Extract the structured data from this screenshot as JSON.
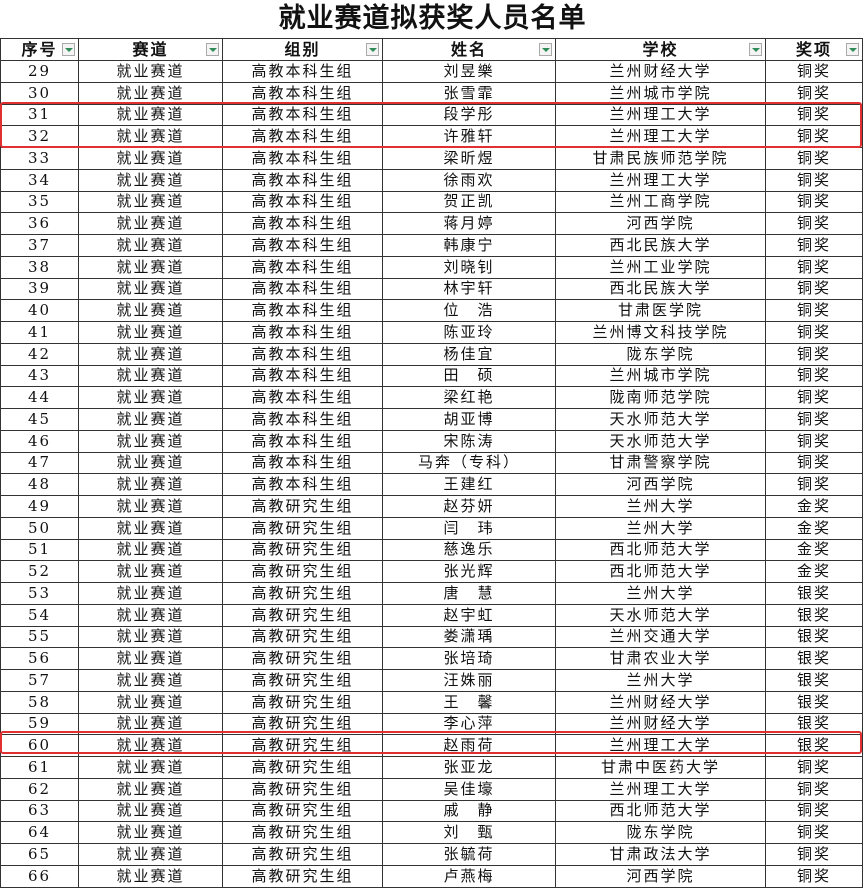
{
  "title": "就业赛道拟获奖人员名单",
  "columns": [
    "序号",
    "赛道",
    "组别",
    "姓名",
    "学校",
    "奖项"
  ],
  "highlight_color": "#e03030",
  "highlighted_rows": [
    "31",
    "32",
    "60"
  ],
  "rows": [
    [
      "29",
      "就业赛道",
      "高教本科生组",
      "刘昱樂",
      "兰州财经大学",
      "铜奖"
    ],
    [
      "30",
      "就业赛道",
      "高教本科生组",
      "张雪霏",
      "兰州城市学院",
      "铜奖"
    ],
    [
      "31",
      "就业赛道",
      "高教本科生组",
      "段学彤",
      "兰州理工大学",
      "铜奖"
    ],
    [
      "32",
      "就业赛道",
      "高教本科生组",
      "许雅轩",
      "兰州理工大学",
      "铜奖"
    ],
    [
      "33",
      "就业赛道",
      "高教本科生组",
      "梁昕煜",
      "甘肃民族师范学院",
      "铜奖"
    ],
    [
      "34",
      "就业赛道",
      "高教本科生组",
      "徐雨欢",
      "兰州理工大学",
      "铜奖"
    ],
    [
      "35",
      "就业赛道",
      "高教本科生组",
      "贺正凯",
      "兰州工商学院",
      "铜奖"
    ],
    [
      "36",
      "就业赛道",
      "高教本科生组",
      "蒋月婷",
      "河西学院",
      "铜奖"
    ],
    [
      "37",
      "就业赛道",
      "高教本科生组",
      "韩康宁",
      "西北民族大学",
      "铜奖"
    ],
    [
      "38",
      "就业赛道",
      "高教本科生组",
      "刘晓钊",
      "兰州工业学院",
      "铜奖"
    ],
    [
      "39",
      "就业赛道",
      "高教本科生组",
      "林宇轩",
      "西北民族大学",
      "铜奖"
    ],
    [
      "40",
      "就业赛道",
      "高教本科生组",
      "位　浩",
      "甘肃医学院",
      "铜奖"
    ],
    [
      "41",
      "就业赛道",
      "高教本科生组",
      "陈亚玲",
      "兰州博文科技学院",
      "铜奖"
    ],
    [
      "42",
      "就业赛道",
      "高教本科生组",
      "杨佳宜",
      "陇东学院",
      "铜奖"
    ],
    [
      "43",
      "就业赛道",
      "高教本科生组",
      "田　硕",
      "兰州城市学院",
      "铜奖"
    ],
    [
      "44",
      "就业赛道",
      "高教本科生组",
      "梁红艳",
      "陇南师范学院",
      "铜奖"
    ],
    [
      "45",
      "就业赛道",
      "高教本科生组",
      "胡亚博",
      "天水师范大学",
      "铜奖"
    ],
    [
      "46",
      "就业赛道",
      "高教本科生组",
      "宋陈涛",
      "天水师范大学",
      "铜奖"
    ],
    [
      "47",
      "就业赛道",
      "高教本科生组",
      "马奔（专科）",
      "甘肃警察学院",
      "铜奖"
    ],
    [
      "48",
      "就业赛道",
      "高教本科生组",
      "王建红",
      "河西学院",
      "铜奖"
    ],
    [
      "49",
      "就业赛道",
      "高教研究生组",
      "赵芬妍",
      "兰州大学",
      "金奖"
    ],
    [
      "50",
      "就业赛道",
      "高教研究生组",
      "闫　玮",
      "兰州大学",
      "金奖"
    ],
    [
      "51",
      "就业赛道",
      "高教研究生组",
      "慈逸乐",
      "西北师范大学",
      "金奖"
    ],
    [
      "52",
      "就业赛道",
      "高教研究生组",
      "张光辉",
      "西北师范大学",
      "金奖"
    ],
    [
      "53",
      "就业赛道",
      "高教研究生组",
      "唐　慧",
      "兰州大学",
      "银奖"
    ],
    [
      "54",
      "就业赛道",
      "高教研究生组",
      "赵宇虹",
      "天水师范大学",
      "银奖"
    ],
    [
      "55",
      "就业赛道",
      "高教研究生组",
      "娄潇瑀",
      "兰州交通大学",
      "银奖"
    ],
    [
      "56",
      "就业赛道",
      "高教研究生组",
      "张培琦",
      "甘肃农业大学",
      "银奖"
    ],
    [
      "57",
      "就业赛道",
      "高教研究生组",
      "汪姝丽",
      "兰州大学",
      "银奖"
    ],
    [
      "58",
      "就业赛道",
      "高教研究生组",
      "王　馨",
      "兰州财经大学",
      "银奖"
    ],
    [
      "59",
      "就业赛道",
      "高教研究生组",
      "李心萍",
      "兰州财经大学",
      "银奖"
    ],
    [
      "60",
      "就业赛道",
      "高教研究生组",
      "赵雨荷",
      "兰州理工大学",
      "银奖"
    ],
    [
      "61",
      "就业赛道",
      "高教研究生组",
      "张亚龙",
      "甘肃中医药大学",
      "铜奖"
    ],
    [
      "62",
      "就业赛道",
      "高教研究生组",
      "吴佳壕",
      "兰州理工大学",
      "铜奖"
    ],
    [
      "63",
      "就业赛道",
      "高教研究生组",
      "戚　静",
      "西北师范大学",
      "铜奖"
    ],
    [
      "64",
      "就业赛道",
      "高教研究生组",
      "刘　甄",
      "陇东学院",
      "铜奖"
    ],
    [
      "65",
      "就业赛道",
      "高教研究生组",
      "张毓荷",
      "甘肃政法大学",
      "铜奖"
    ],
    [
      "66",
      "就业赛道",
      "高教研究生组",
      "卢燕梅",
      "河西学院",
      "铜奖"
    ]
  ]
}
